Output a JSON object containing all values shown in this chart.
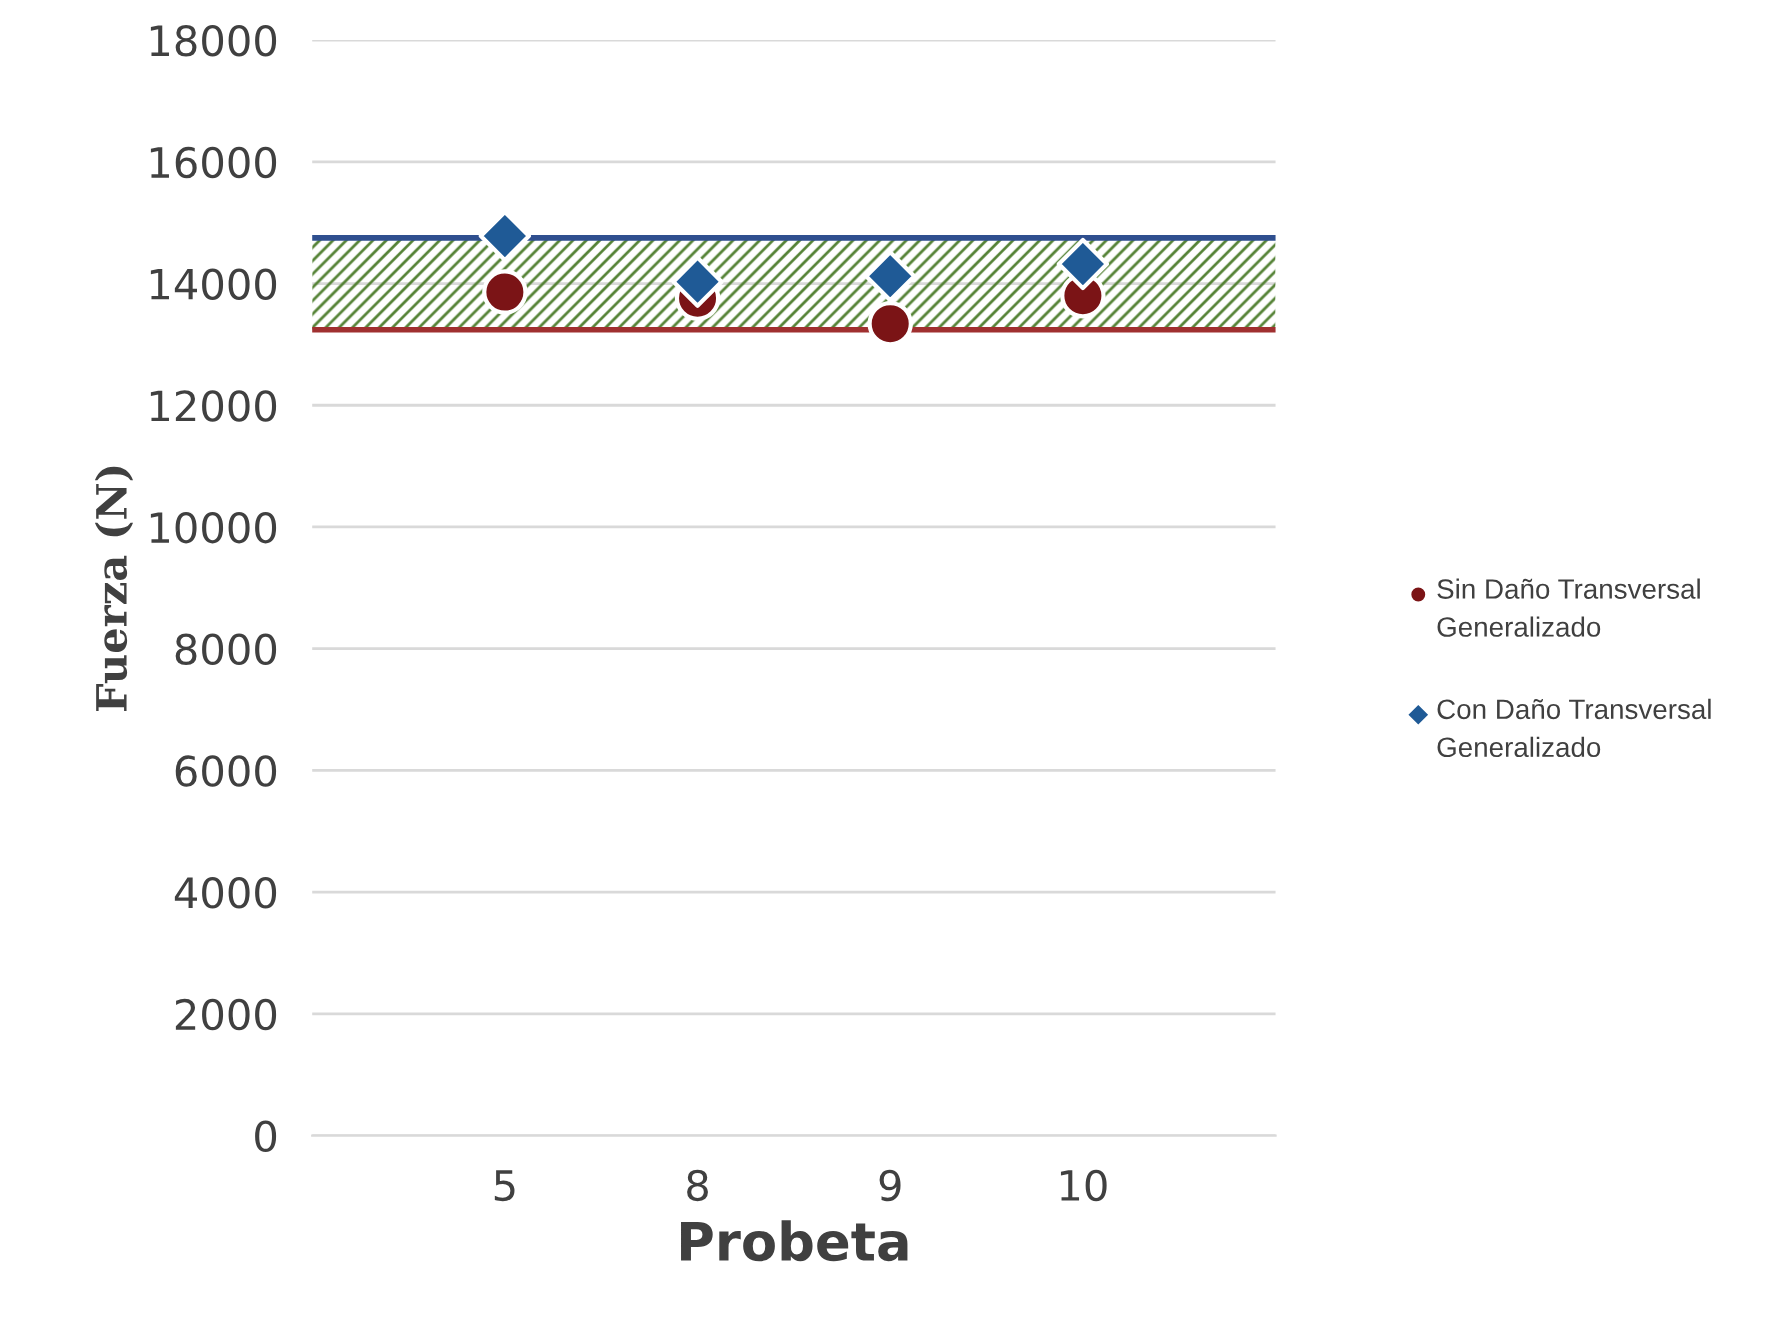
{
  "chart_data": {
    "type": "scatter",
    "xlabel": "Probeta",
    "ylabel": "Fuerza (N)",
    "categories": [
      "5",
      "8",
      "9",
      "10"
    ],
    "series": [
      {
        "name": "Sin Daño Transversal Generalizado",
        "color": "#7b1416",
        "marker": "circle",
        "values": [
          13860,
          13760,
          13340,
          13800
        ]
      },
      {
        "name": "Con Daño Transversal Generalizado",
        "color": "#1f5a96",
        "marker": "diamond",
        "values": [
          14780,
          14030,
          14120,
          14320
        ]
      }
    ],
    "ylim": [
      0,
      18000
    ],
    "yticks": [
      0,
      2000,
      4000,
      6000,
      8000,
      10000,
      12000,
      14000,
      16000,
      18000
    ],
    "grid": "y",
    "legend": "right",
    "bands": [
      {
        "axis": "y",
        "from": 13240,
        "to": 14750,
        "color": "#548235"
      }
    ],
    "ref_lines": [
      {
        "axis": "y",
        "value": 13240,
        "color": "#a03030"
      },
      {
        "axis": "y",
        "value": 14750,
        "color": "#2f4f8f"
      }
    ]
  }
}
